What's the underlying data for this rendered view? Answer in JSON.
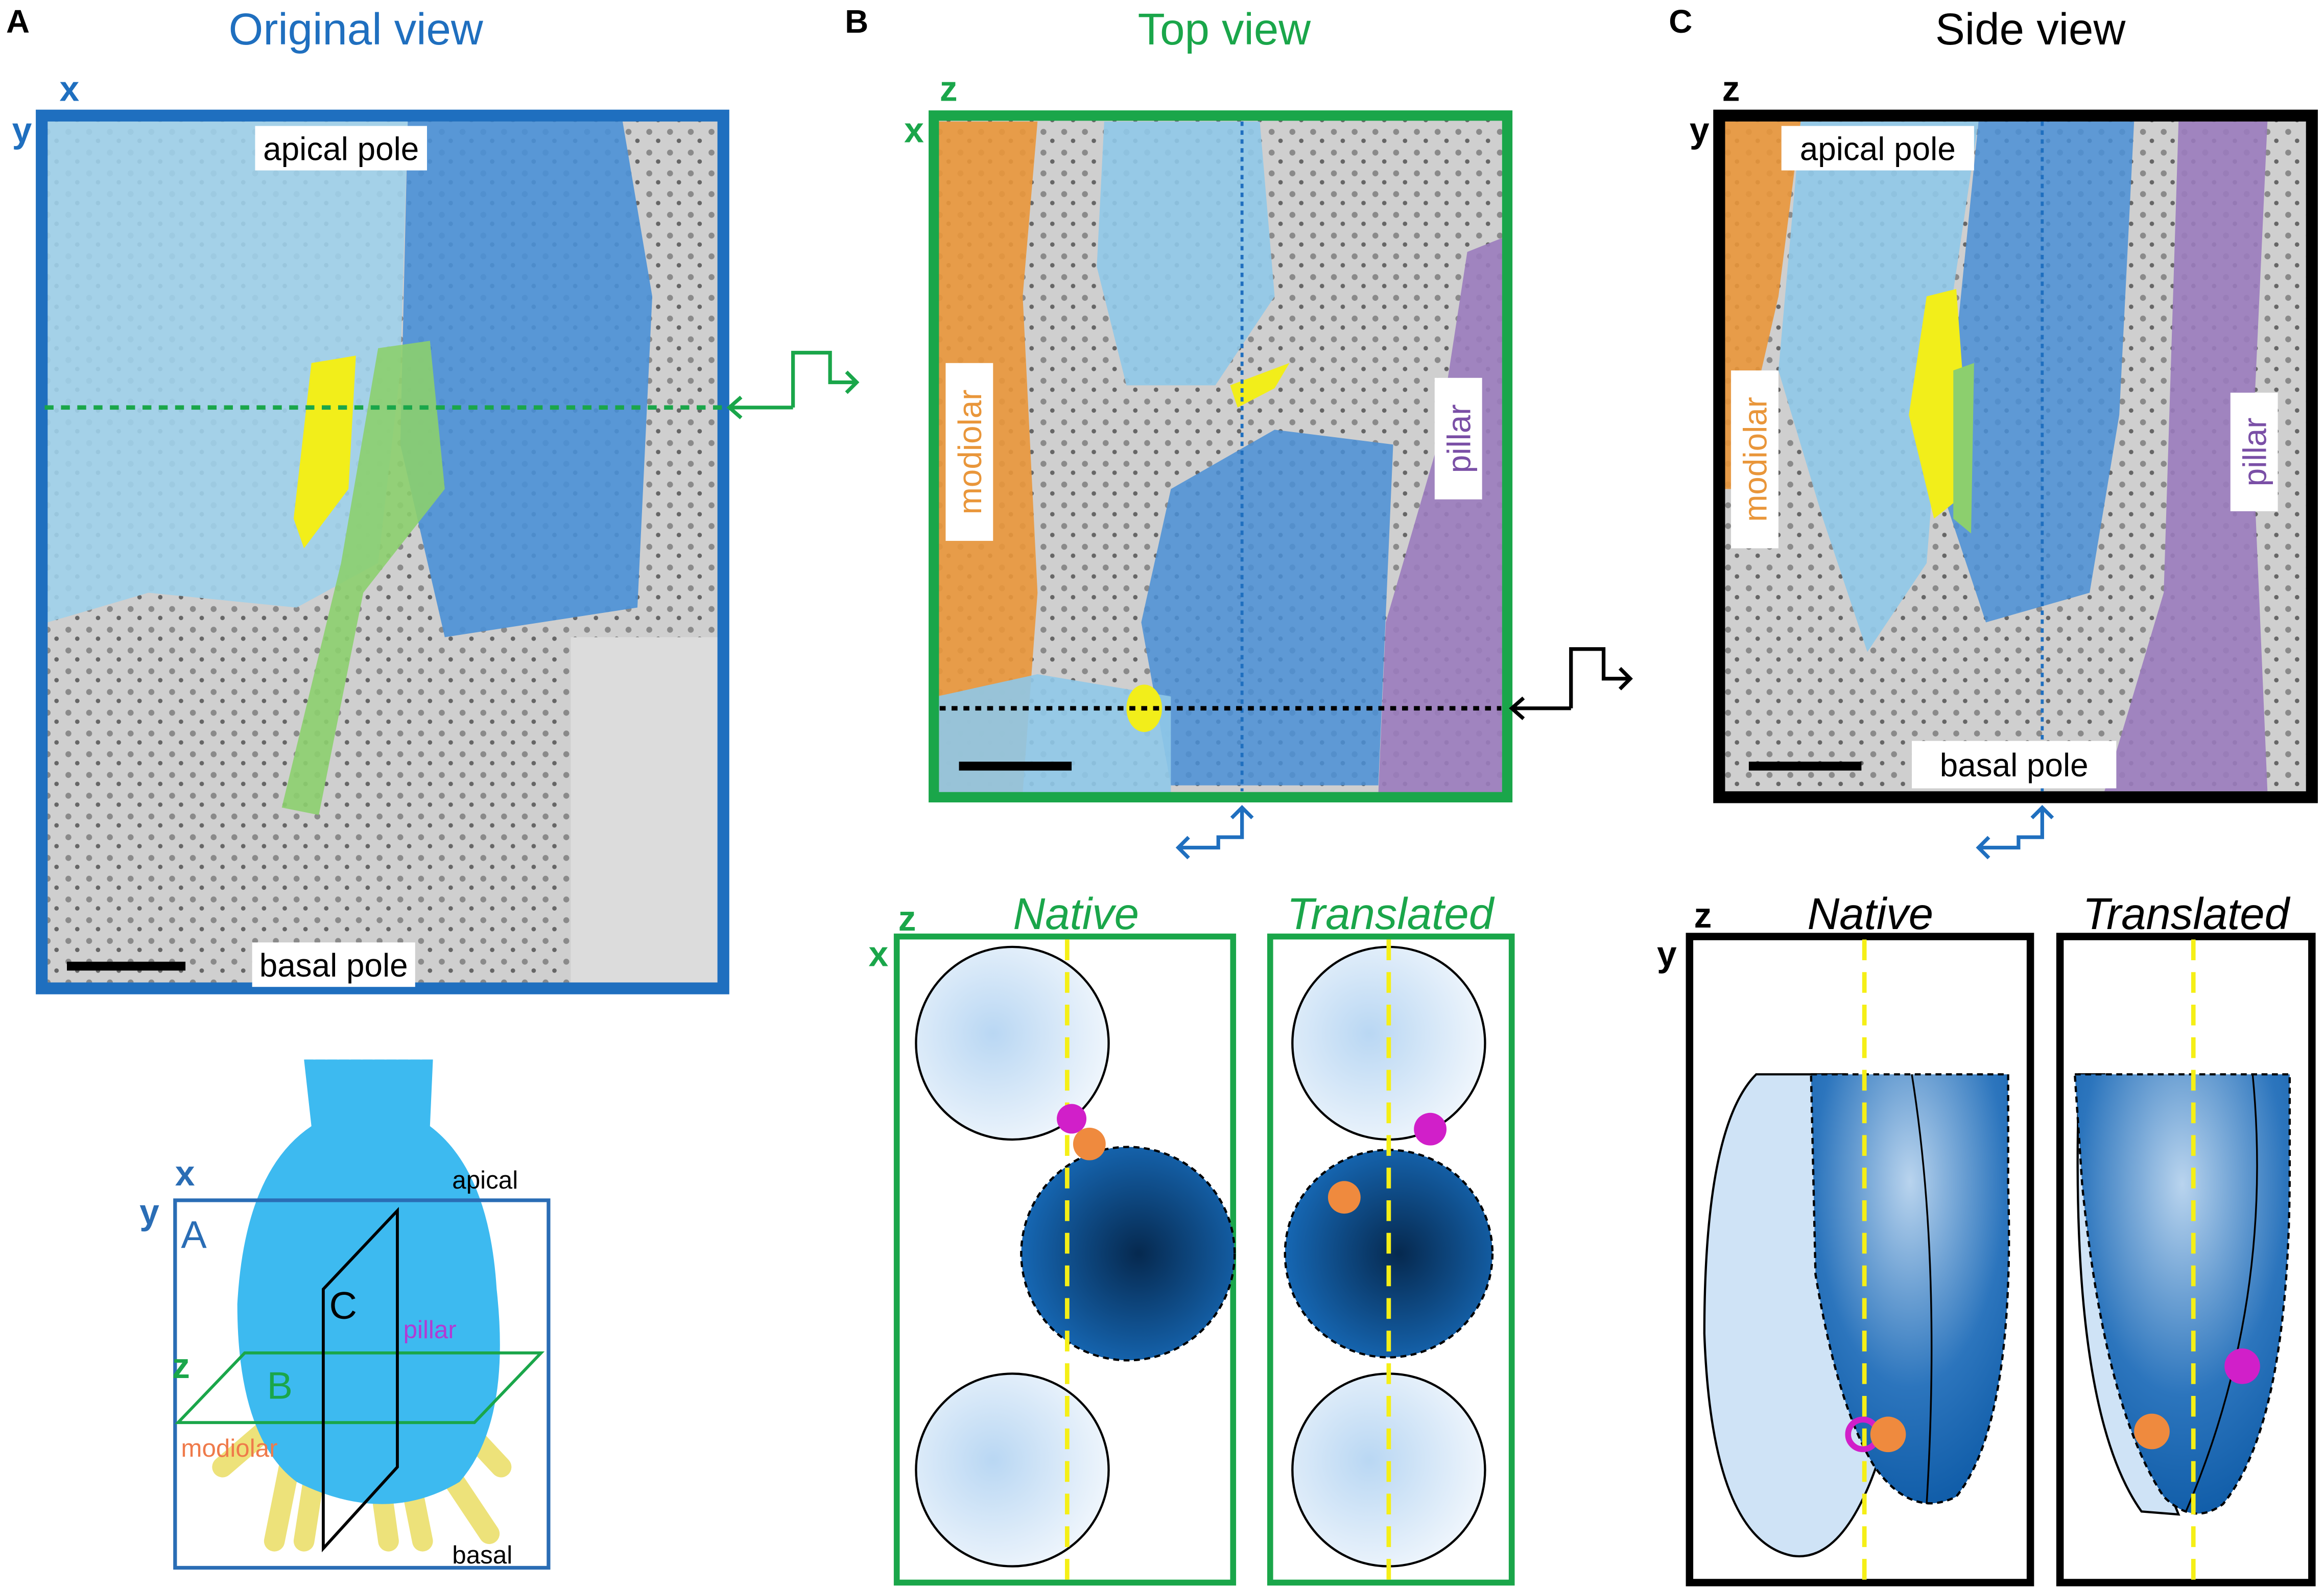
{
  "panels": [
    {
      "letter": "A",
      "title": "Original view",
      "axis_h": "x",
      "axis_v": "y",
      "top_label": "apical pole",
      "bottom_label": "basal pole"
    },
    {
      "letter": "B",
      "title": "Top view",
      "axis_h": "z",
      "axis_v": "x",
      "left_label": "modiolar",
      "right_label": "pillar"
    },
    {
      "letter": "C",
      "title": "Side view",
      "axis_h": "z",
      "axis_v": "y",
      "top_label": "apical pole",
      "bottom_label": "basal pole",
      "left_label": "modiolar",
      "right_label": "pillar"
    }
  ],
  "top_models": {
    "axis_h": "z",
    "axis_v": "x",
    "native": "Native",
    "translated": "Translated"
  },
  "side_models": {
    "axis_h": "z",
    "axis_v": "y",
    "native": "Native",
    "translated": "Translated"
  },
  "schematic": {
    "axis_h": "x",
    "axis_v": "y",
    "box_label": "A",
    "plane_c": "C",
    "plane_b": "B",
    "axis_z": "z",
    "apical": "apical",
    "pillar": "pillar",
    "modiolar": "modiolar",
    "basal": "basal"
  }
}
